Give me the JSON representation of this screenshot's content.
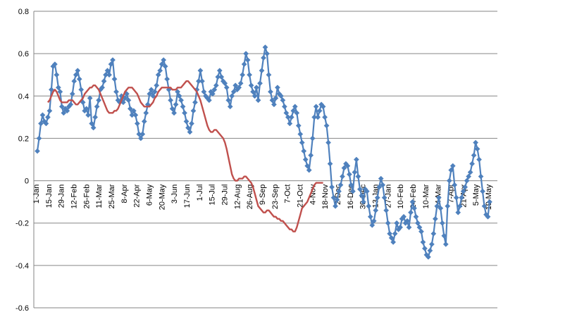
{
  "chart_data": {
    "type": "line",
    "title": "",
    "xlabel": "",
    "ylabel": "",
    "ylim": [
      -0.6,
      0.8
    ],
    "y_ticks": [
      "0.8",
      "0.6",
      "0.4",
      "0.2",
      "0",
      "-0.2",
      "-0.4",
      "-0.6"
    ],
    "y_tick_values": [
      0.8,
      0.6,
      0.4,
      0.2,
      0,
      -0.2,
      -0.4,
      -0.6
    ],
    "grid": "horizontal major gridlines",
    "legend": "none",
    "x_tick_labels": [
      "1-Jan",
      "15-Jan",
      "29-Jan",
      "12-Feb",
      "26-Feb",
      "11-Mar",
      "25-Mar",
      "8-Apr",
      "22-Apr",
      "6-May",
      "20-May",
      "3-Jun",
      "17-Jun",
      "1-Jul",
      "15-Jul",
      "29-Jul",
      "12-Aug",
      "26-Aug",
      "9-Sep",
      "23-Sep",
      "7-Oct",
      "21-Oct",
      "4-Nov",
      "18-Nov",
      "2-Dec",
      "16-Dec",
      "30-Dec",
      "13-Jan",
      "27-Jan",
      "10-Feb",
      "24-Feb",
      "10-Mar",
      "24-Mar",
      "7-Apr",
      "21-Apr",
      "5-May",
      "19-May"
    ],
    "series": [
      {
        "color": "#4F81BD",
        "marker": "diamond",
        "values": [
          0.14,
          0.2,
          0.27,
          0.31,
          0.28,
          0.27,
          0.3,
          0.33,
          0.43,
          0.54,
          0.55,
          0.5,
          0.44,
          0.42,
          0.35,
          0.32,
          0.34,
          0.33,
          0.35,
          0.36,
          0.41,
          0.47,
          0.5,
          0.52,
          0.48,
          0.43,
          0.37,
          0.33,
          0.34,
          0.31,
          0.39,
          0.27,
          0.25,
          0.3,
          0.35,
          0.38,
          0.43,
          0.44,
          0.47,
          0.5,
          0.52,
          0.5,
          0.55,
          0.57,
          0.48,
          0.42,
          0.38,
          0.37,
          0.4,
          0.37,
          0.39,
          0.41,
          0.38,
          0.34,
          0.31,
          0.33,
          0.31,
          0.27,
          0.22,
          0.2,
          0.22,
          0.28,
          0.32,
          0.36,
          0.41,
          0.43,
          0.4,
          0.42,
          0.45,
          0.5,
          0.52,
          0.55,
          0.57,
          0.54,
          0.48,
          0.43,
          0.38,
          0.34,
          0.32,
          0.36,
          0.42,
          0.4,
          0.38,
          0.35,
          0.32,
          0.28,
          0.25,
          0.23,
          0.27,
          0.33,
          0.37,
          0.43,
          0.47,
          0.52,
          0.47,
          0.42,
          0.4,
          0.39,
          0.38,
          0.42,
          0.41,
          0.43,
          0.45,
          0.49,
          0.52,
          0.49,
          0.47,
          0.46,
          0.44,
          0.38,
          0.35,
          0.4,
          0.42,
          0.45,
          0.43,
          0.44,
          0.46,
          0.5,
          0.55,
          0.6,
          0.57,
          0.5,
          0.45,
          0.42,
          0.4,
          0.44,
          0.38,
          0.46,
          0.52,
          0.58,
          0.63,
          0.6,
          0.5,
          0.42,
          0.38,
          0.36,
          0.39,
          0.44,
          0.41,
          0.4,
          0.38,
          0.35,
          0.32,
          0.3,
          0.27,
          0.3,
          0.33,
          0.35,
          0.32,
          0.26,
          0.22,
          0.18,
          0.14,
          0.1,
          0.07,
          0.05,
          0.12,
          0.2,
          0.3,
          0.35,
          0.3,
          0.33,
          0.36,
          0.35,
          0.3,
          0.26,
          0.18,
          0.08,
          -0.03,
          -0.08,
          -0.12,
          -0.09,
          -0.05,
          -0.02,
          0.02,
          0.06,
          0.08,
          0.07,
          0.03,
          -0.02,
          -0.05,
          0.04,
          0.1,
          0.02,
          -0.04,
          -0.07,
          -0.1,
          -0.04,
          -0.05,
          -0.12,
          -0.17,
          -0.21,
          -0.19,
          -0.14,
          -0.08,
          -0.03,
          0.01,
          -0.02,
          -0.08,
          -0.14,
          -0.2,
          -0.25,
          -0.27,
          -0.29,
          -0.25,
          -0.2,
          -0.23,
          -0.22,
          -0.18,
          -0.17,
          -0.2,
          -0.19,
          -0.22,
          -0.15,
          -0.1,
          -0.13,
          -0.17,
          -0.2,
          -0.22,
          -0.24,
          -0.29,
          -0.32,
          -0.35,
          -0.36,
          -0.33,
          -0.3,
          -0.25,
          -0.18,
          -0.12,
          -0.08,
          -0.13,
          -0.2,
          -0.26,
          -0.3,
          -0.12,
          0.0,
          0.05,
          0.07,
          -0.02,
          -0.08,
          -0.15,
          -0.12,
          -0.08,
          -0.05,
          -0.03,
          0.0,
          0.02,
          0.04,
          0.08,
          0.12,
          0.18,
          0.15,
          0.1,
          0.02,
          -0.05,
          -0.12,
          -0.16,
          -0.17,
          -0.1
        ]
      },
      {
        "color": "#C0504D",
        "marker": "none",
        "start_index": 6,
        "values": [
          0.37,
          0.38,
          0.4,
          0.42,
          0.43,
          0.42,
          0.4,
          0.38,
          0.37,
          0.37,
          0.37,
          0.37,
          0.38,
          0.38,
          0.38,
          0.37,
          0.36,
          0.36,
          0.37,
          0.38,
          0.39,
          0.41,
          0.42,
          0.43,
          0.44,
          0.44,
          0.45,
          0.45,
          0.44,
          0.43,
          0.41,
          0.39,
          0.37,
          0.35,
          0.33,
          0.32,
          0.32,
          0.32,
          0.33,
          0.33,
          0.34,
          0.36,
          0.38,
          0.4,
          0.42,
          0.43,
          0.44,
          0.44,
          0.44,
          0.43,
          0.42,
          0.41,
          0.39,
          0.37,
          0.36,
          0.35,
          0.35,
          0.35,
          0.35,
          0.36,
          0.37,
          0.39,
          0.4,
          0.42,
          0.43,
          0.44,
          0.44,
          0.44,
          0.44,
          0.44,
          0.44,
          0.43,
          0.43,
          0.43,
          0.44,
          0.44,
          0.44,
          0.45,
          0.46,
          0.47,
          0.47,
          0.46,
          0.45,
          0.44,
          0.43,
          0.42,
          0.4,
          0.38,
          0.35,
          0.32,
          0.29,
          0.26,
          0.24,
          0.23,
          0.23,
          0.24,
          0.24,
          0.23,
          0.22,
          0.21,
          0.2,
          0.18,
          0.15,
          0.11,
          0.07,
          0.03,
          0.01,
          0.0,
          0.0,
          0.01,
          0.01,
          0.01,
          0.02,
          0.02,
          0.01,
          0.0,
          -0.01,
          -0.03,
          -0.06,
          -0.09,
          -0.12,
          -0.13,
          -0.14,
          -0.15,
          -0.15,
          -0.14,
          -0.14,
          -0.15,
          -0.16,
          -0.17,
          -0.17,
          -0.18,
          -0.18,
          -0.19,
          -0.19,
          -0.2,
          -0.21,
          -0.22,
          -0.23,
          -0.23,
          -0.24,
          -0.24,
          -0.22,
          -0.19,
          -0.16,
          -0.13,
          -0.12,
          -0.11,
          -0.1,
          -0.08,
          -0.06,
          -0.04,
          -0.02,
          -0.01,
          -0.01,
          -0.01,
          -0.01,
          -0.01
        ]
      }
    ]
  }
}
